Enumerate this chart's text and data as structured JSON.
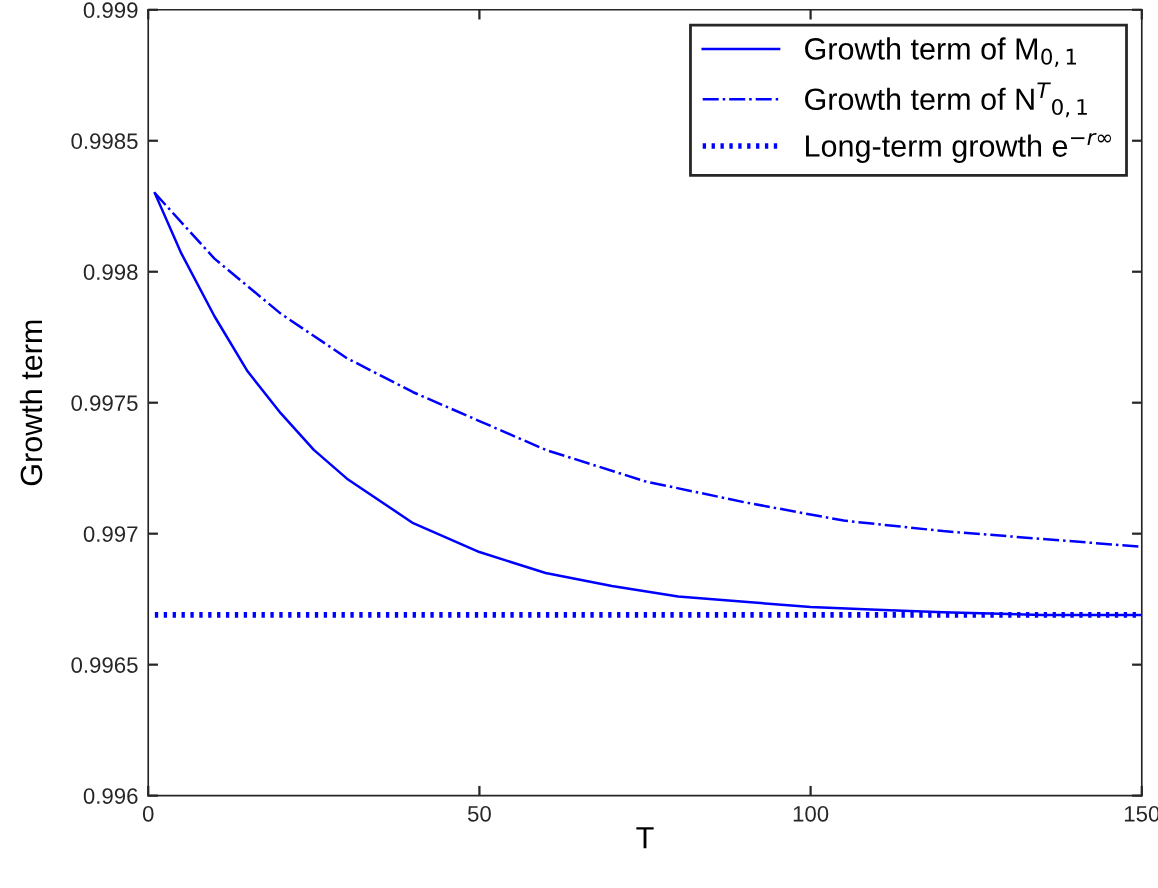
{
  "chart_data": {
    "type": "line",
    "xlabel": "T",
    "ylabel": "Growth term",
    "xlim": [
      0,
      150
    ],
    "xticks": [
      0,
      50,
      100,
      150
    ],
    "ylim": [
      0.996,
      0.999
    ],
    "yticks": [
      0.996,
      0.9965,
      0.997,
      0.9975,
      0.998,
      0.9985,
      0.999
    ],
    "grid": false,
    "legend": "top right",
    "marker": "none",
    "series": [
      {
        "name": "Growth term of M$_{0,1}$",
        "color": "#0000ff",
        "line_style": "solid",
        "x": [
          1,
          5,
          10,
          15,
          20,
          25,
          30,
          40,
          50,
          60,
          70,
          80,
          90,
          100,
          110,
          120,
          135,
          150
        ],
        "values": [
          0.9983,
          0.99807,
          0.99783,
          0.99762,
          0.99746,
          0.99732,
          0.99721,
          0.99704,
          0.99693,
          0.99685,
          0.9968,
          0.99676,
          0.99674,
          0.99672,
          0.99671,
          0.9967,
          0.99669,
          0.99669
        ]
      },
      {
        "name": "Growth term of N$^{T}$$_{0,1}$",
        "color": "#0000ff",
        "line_style": "dashdot",
        "x": [
          1,
          10,
          20,
          30,
          40,
          50,
          60,
          75,
          90,
          105,
          120,
          135,
          150
        ],
        "values": [
          0.9983,
          0.99805,
          0.99784,
          0.99767,
          0.99754,
          0.99743,
          0.99732,
          0.9972,
          0.99712,
          0.99705,
          0.99701,
          0.99698,
          0.99695
        ]
      },
      {
        "name": "Long-term growth e$^{−r∞}$",
        "color": "#0000ff",
        "line_style": "dotted",
        "x": [
          1,
          150
        ],
        "values": [
          0.99669,
          0.99669
        ]
      }
    ]
  }
}
